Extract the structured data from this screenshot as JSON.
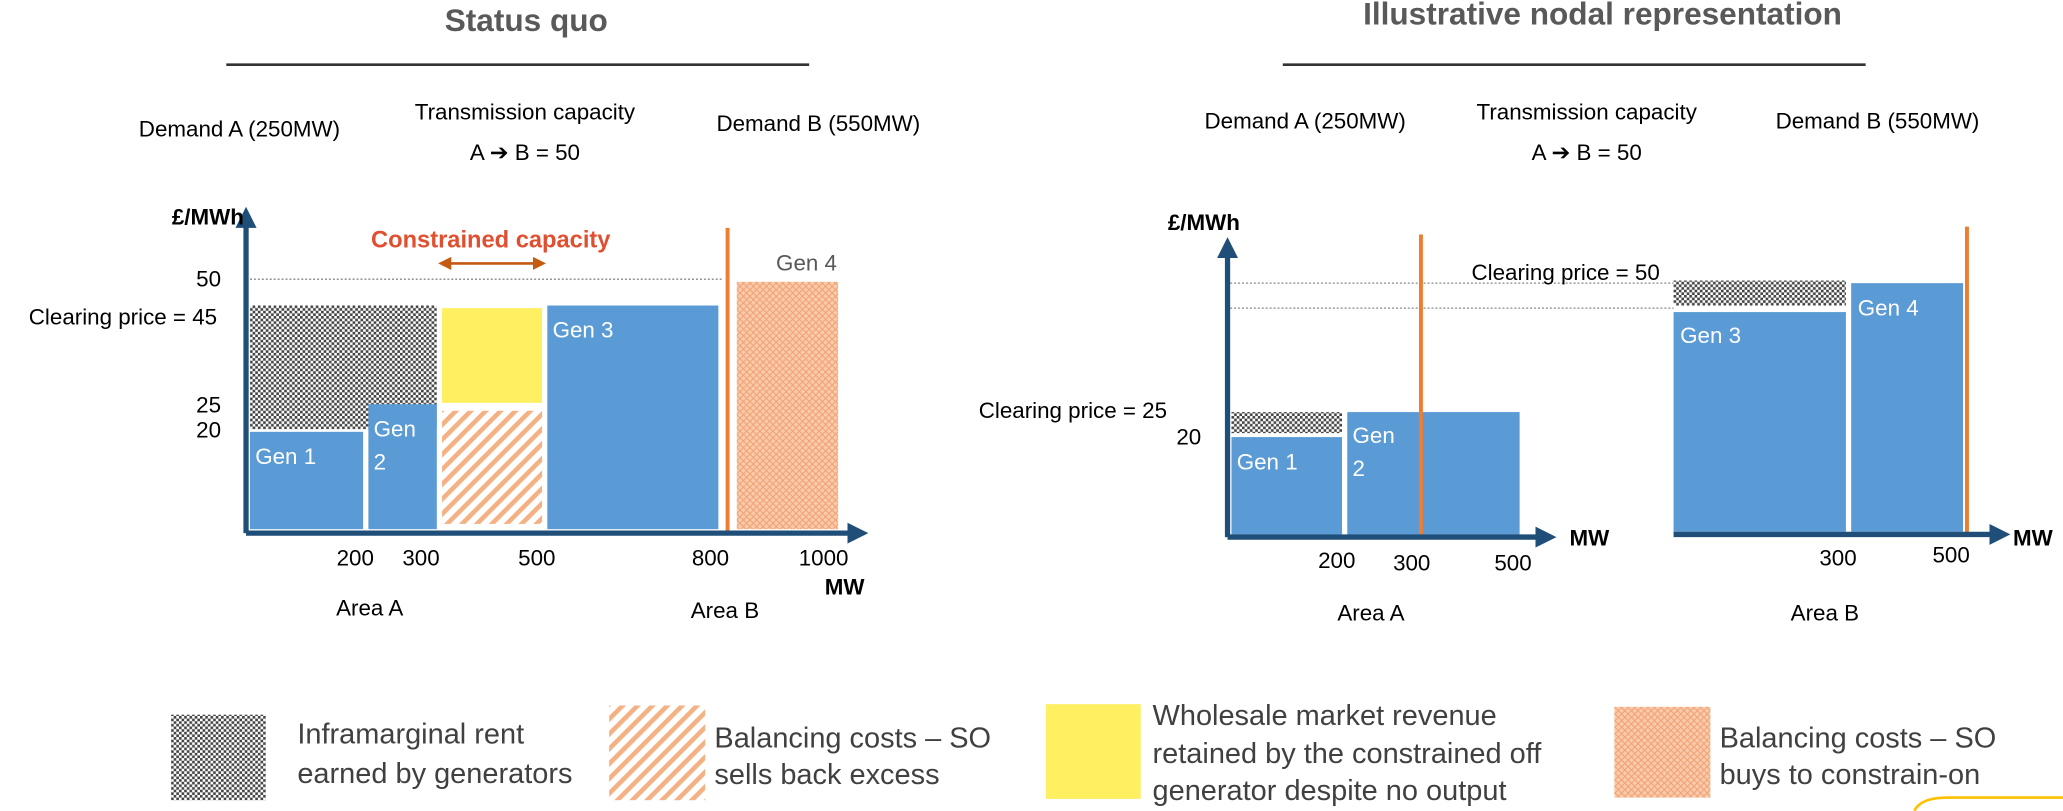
{
  "left": {
    "title": "Status quo",
    "demand_a": "Demand A (250MW)",
    "transmission": [
      "Transmission capacity",
      "A ➔ B = 50"
    ],
    "demand_b": "Demand B (550MW)",
    "y_label": "£/MWh",
    "constrained": "Constrained capacity",
    "gen4": "Gen 4",
    "y_50": "50",
    "clearing": "Clearing price = 45",
    "y_25": "25",
    "y_20": "20",
    "gen1": "Gen 1",
    "gen2": [
      "Gen",
      "2"
    ],
    "gen3": "Gen 3",
    "x_ticks": [
      "200",
      "300",
      "500",
      "800",
      "1000"
    ],
    "x_label": "MW",
    "area_a": "Area A",
    "area_b": "Area B"
  },
  "right": {
    "title": "Illustrative nodal representation",
    "demand_a": "Demand A (250MW)",
    "transmission": [
      "Transmission capacity",
      "A ➔ B = 50"
    ],
    "demand_b": "Demand B (550MW)",
    "y_label": "£/MWh",
    "clearing_b": "Clearing price = 50",
    "clearing_a": "Clearing price = 25",
    "y_20": "20",
    "gen1": "Gen 1",
    "gen2": [
      "Gen",
      "2"
    ],
    "gen3": "Gen 3",
    "gen4": "Gen 4",
    "x_label_a": "MW",
    "x_ticks_a": [
      "200",
      "300",
      "500"
    ],
    "area_a": "Area A",
    "x_label_b": "MW",
    "x_ticks_b": [
      "300",
      "500"
    ],
    "area_b": "Area B"
  },
  "legend": [
    {
      "lines": [
        "Inframarginal rent",
        "earned by generators"
      ]
    },
    {
      "lines": [
        "Balancing costs – SO",
        "sells back excess"
      ]
    },
    {
      "lines": [
        "Wholesale market revenue",
        "retained by the constrained off",
        "generator despite no output"
      ]
    },
    {
      "lines": [
        "Balancing costs – SO",
        "buys to constrain-on"
      ]
    }
  ]
}
